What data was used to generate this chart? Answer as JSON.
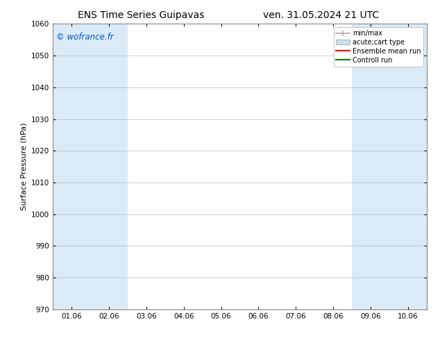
{
  "title_left": "ENS Time Series Guipavas",
  "title_right": "ven. 31.05.2024 21 UTC",
  "ylabel": "Surface Pressure (hPa)",
  "ylim": [
    970,
    1060
  ],
  "yticks": [
    970,
    980,
    990,
    1000,
    1010,
    1020,
    1030,
    1040,
    1050,
    1060
  ],
  "xlim": [
    -0.5,
    9.5
  ],
  "xtick_labels": [
    "01.06",
    "02.06",
    "03.06",
    "04.06",
    "05.06",
    "06.06",
    "07.06",
    "08.06",
    "09.06",
    "10.06"
  ],
  "xtick_positions": [
    0,
    1,
    2,
    3,
    4,
    5,
    6,
    7,
    8,
    9
  ],
  "watermark": "© wofrance.fr",
  "watermark_color": "#0055cc",
  "shaded_bands": [
    {
      "x_start": -0.5,
      "x_end": 0.5,
      "color": "#daeaf6"
    },
    {
      "x_start": 0.5,
      "x_end": 1.5,
      "color": "#daeaf6"
    },
    {
      "x_start": 7.5,
      "x_end": 8.5,
      "color": "#daeaf6"
    },
    {
      "x_start": 8.5,
      "x_end": 9.5,
      "color": "#daeaf6"
    }
  ],
  "legend_entries": [
    {
      "label": "min/max",
      "color": "#aaaaaa",
      "style": "errorbar"
    },
    {
      "label": "acute;cart type",
      "color": "#c8dff0",
      "style": "rect"
    },
    {
      "label": "Ensemble mean run",
      "color": "#ff0000",
      "style": "line"
    },
    {
      "label": "Controll run",
      "color": "#008000",
      "style": "line"
    }
  ],
  "background_color": "#ffffff",
  "plot_bg_color": "#ffffff",
  "grid_color": "#bbbbbb",
  "title_fontsize": 10,
  "label_fontsize": 8,
  "tick_fontsize": 7.5,
  "legend_fontsize": 7
}
